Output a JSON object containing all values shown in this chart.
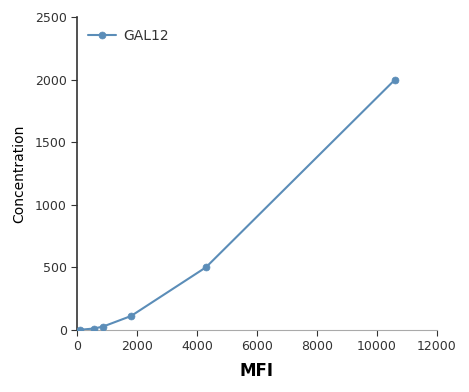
{
  "x_data": [
    107,
    560,
    860,
    1800,
    4300,
    10600
  ],
  "y_data": [
    0,
    10,
    25,
    110,
    500,
    2000
  ],
  "line_color": "#5B8DB8",
  "marker_color": "#5B8DB8",
  "marker_style": "o",
  "marker_size": 5,
  "legend_label": "GAL12",
  "xlabel": "MFI",
  "ylabel": "Concentration",
  "xlim": [
    0,
    12000
  ],
  "ylim": [
    0,
    2500
  ],
  "xticks": [
    0,
    2000,
    4000,
    6000,
    8000,
    10000,
    12000
  ],
  "yticks": [
    0,
    500,
    1000,
    1500,
    2000,
    2500
  ],
  "xlabel_fontsize": 12,
  "ylabel_fontsize": 10,
  "tick_fontsize": 9,
  "legend_fontsize": 10,
  "background_color": "#ffffff",
  "spine_color": "#aaaaaa",
  "left_spine_color": "#333333"
}
